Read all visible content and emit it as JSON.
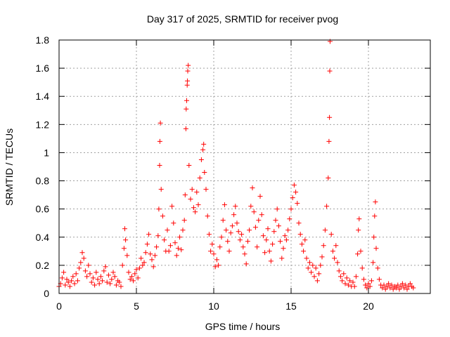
{
  "chart_data": {
    "type": "scatter",
    "title": "Day 317 of 2025, SRMTID for receiver pvog",
    "xlabel": "GPS time / hours",
    "ylabel": "SRMTID / TECUs",
    "xlim": [
      0,
      24
    ],
    "ylim": [
      0,
      1.8
    ],
    "xticks": [
      0,
      5,
      10,
      15,
      20
    ],
    "xtick_labels": [
      "0",
      "5",
      "10",
      "15",
      "20"
    ],
    "yticks": [
      0,
      0.2,
      0.4,
      0.6,
      0.8,
      1,
      1.2,
      1.4,
      1.6,
      1.8
    ],
    "ytick_labels": [
      "0",
      "0.2",
      "0.4",
      "0.6",
      "0.8",
      "1",
      "1.2",
      "1.4",
      "1.6",
      "1.8"
    ],
    "grid": true,
    "marker": "plus",
    "color": "#ff0000",
    "series": [
      {
        "name": "SRMTID",
        "points": [
          [
            0.0,
            0.05
          ],
          [
            0.1,
            0.07
          ],
          [
            0.2,
            0.11
          ],
          [
            0.3,
            0.15
          ],
          [
            0.4,
            0.06
          ],
          [
            0.5,
            0.1
          ],
          [
            0.6,
            0.08
          ],
          [
            0.7,
            0.05
          ],
          [
            0.8,
            0.09
          ],
          [
            0.9,
            0.12
          ],
          [
            1.0,
            0.07
          ],
          [
            1.1,
            0.14
          ],
          [
            1.2,
            0.09
          ],
          [
            1.3,
            0.18
          ],
          [
            1.4,
            0.22
          ],
          [
            1.5,
            0.29
          ],
          [
            1.6,
            0.25
          ],
          [
            1.7,
            0.16
          ],
          [
            1.8,
            0.12
          ],
          [
            1.9,
            0.2
          ],
          [
            2.0,
            0.14
          ],
          [
            2.1,
            0.08
          ],
          [
            2.2,
            0.11
          ],
          [
            2.3,
            0.06
          ],
          [
            2.4,
            0.15
          ],
          [
            2.5,
            0.1
          ],
          [
            2.6,
            0.07
          ],
          [
            2.7,
            0.12
          ],
          [
            2.8,
            0.09
          ],
          [
            2.9,
            0.16
          ],
          [
            3.0,
            0.19
          ],
          [
            3.1,
            0.08
          ],
          [
            3.2,
            0.13
          ],
          [
            3.3,
            0.07
          ],
          [
            3.4,
            0.1
          ],
          [
            3.5,
            0.15
          ],
          [
            3.6,
            0.12
          ],
          [
            3.7,
            0.06
          ],
          [
            3.8,
            0.09
          ],
          [
            3.9,
            0.08
          ],
          [
            4.0,
            0.05
          ],
          [
            4.1,
            0.2
          ],
          [
            4.2,
            0.32
          ],
          [
            4.25,
            0.46
          ],
          [
            4.3,
            0.38
          ],
          [
            4.4,
            0.27
          ],
          [
            4.5,
            0.15
          ],
          [
            4.6,
            0.1
          ],
          [
            4.7,
            0.12
          ],
          [
            4.8,
            0.09
          ],
          [
            4.9,
            0.14
          ],
          [
            5.0,
            0.17
          ],
          [
            5.1,
            0.11
          ],
          [
            5.2,
            0.18
          ],
          [
            5.3,
            0.25
          ],
          [
            5.4,
            0.2
          ],
          [
            5.5,
            0.22
          ],
          [
            5.6,
            0.29
          ],
          [
            5.7,
            0.35
          ],
          [
            5.8,
            0.42
          ],
          [
            5.9,
            0.28
          ],
          [
            6.0,
            0.24
          ],
          [
            6.1,
            0.19
          ],
          [
            6.2,
            0.27
          ],
          [
            6.3,
            0.33
          ],
          [
            6.4,
            0.41
          ],
          [
            6.45,
            0.6
          ],
          [
            6.5,
            0.91
          ],
          [
            6.52,
            1.08
          ],
          [
            6.55,
            1.21
          ],
          [
            6.6,
            0.74
          ],
          [
            6.7,
            0.55
          ],
          [
            6.8,
            0.38
          ],
          [
            6.9,
            0.3
          ],
          [
            7.0,
            0.45
          ],
          [
            7.1,
            0.3
          ],
          [
            7.2,
            0.34
          ],
          [
            7.3,
            0.62
          ],
          [
            7.4,
            0.5
          ],
          [
            7.5,
            0.36
          ],
          [
            7.6,
            0.27
          ],
          [
            7.7,
            0.32
          ],
          [
            7.8,
            0.4
          ],
          [
            7.9,
            0.31
          ],
          [
            8.0,
            0.45
          ],
          [
            8.1,
            0.52
          ],
          [
            8.15,
            0.7
          ],
          [
            8.2,
            1.17
          ],
          [
            8.22,
            1.31
          ],
          [
            8.25,
            1.37
          ],
          [
            8.28,
            1.48
          ],
          [
            8.3,
            1.51
          ],
          [
            8.32,
            1.58
          ],
          [
            8.35,
            1.62
          ],
          [
            8.4,
            0.91
          ],
          [
            8.5,
            0.67
          ],
          [
            8.6,
            0.74
          ],
          [
            8.7,
            0.61
          ],
          [
            8.8,
            0.58
          ],
          [
            8.9,
            0.72
          ],
          [
            9.0,
            0.63
          ],
          [
            9.1,
            0.82
          ],
          [
            9.2,
            0.95
          ],
          [
            9.3,
            1.02
          ],
          [
            9.35,
            1.06
          ],
          [
            9.4,
            0.86
          ],
          [
            9.5,
            0.74
          ],
          [
            9.6,
            0.55
          ],
          [
            9.7,
            0.42
          ],
          [
            9.8,
            0.3
          ],
          [
            9.9,
            0.35
          ],
          [
            10.0,
            0.28
          ],
          [
            10.1,
            0.19
          ],
          [
            10.2,
            0.24
          ],
          [
            10.3,
            0.2
          ],
          [
            10.4,
            0.33
          ],
          [
            10.5,
            0.4
          ],
          [
            10.6,
            0.52
          ],
          [
            10.7,
            0.63
          ],
          [
            10.8,
            0.45
          ],
          [
            10.9,
            0.37
          ],
          [
            11.0,
            0.3
          ],
          [
            11.1,
            0.43
          ],
          [
            11.2,
            0.48
          ],
          [
            11.3,
            0.56
          ],
          [
            11.4,
            0.62
          ],
          [
            11.5,
            0.5
          ],
          [
            11.6,
            0.44
          ],
          [
            11.7,
            0.38
          ],
          [
            11.8,
            0.42
          ],
          [
            11.9,
            0.33
          ],
          [
            12.0,
            0.28
          ],
          [
            12.1,
            0.21
          ],
          [
            12.2,
            0.37
          ],
          [
            12.3,
            0.45
          ],
          [
            12.4,
            0.62
          ],
          [
            12.5,
            0.75
          ],
          [
            12.6,
            0.58
          ],
          [
            12.7,
            0.47
          ],
          [
            12.8,
            0.33
          ],
          [
            12.9,
            0.52
          ],
          [
            13.0,
            0.69
          ],
          [
            13.1,
            0.56
          ],
          [
            13.2,
            0.41
          ],
          [
            13.3,
            0.29
          ],
          [
            13.4,
            0.38
          ],
          [
            13.5,
            0.46
          ],
          [
            13.6,
            0.3
          ],
          [
            13.7,
            0.23
          ],
          [
            13.8,
            0.35
          ],
          [
            13.9,
            0.44
          ],
          [
            14.0,
            0.52
          ],
          [
            14.1,
            0.6
          ],
          [
            14.2,
            0.48
          ],
          [
            14.3,
            0.37
          ],
          [
            14.4,
            0.25
          ],
          [
            14.5,
            0.32
          ],
          [
            14.6,
            0.41
          ],
          [
            14.7,
            0.38
          ],
          [
            14.8,
            0.45
          ],
          [
            14.9,
            0.53
          ],
          [
            15.0,
            0.6
          ],
          [
            15.1,
            0.68
          ],
          [
            15.2,
            0.77
          ],
          [
            15.3,
            0.72
          ],
          [
            15.4,
            0.64
          ],
          [
            15.5,
            0.5
          ],
          [
            15.6,
            0.42
          ],
          [
            15.7,
            0.35
          ],
          [
            15.8,
            0.3
          ],
          [
            15.9,
            0.38
          ],
          [
            16.0,
            0.25
          ],
          [
            16.1,
            0.18
          ],
          [
            16.2,
            0.22
          ],
          [
            16.3,
            0.15
          ],
          [
            16.4,
            0.2
          ],
          [
            16.5,
            0.12
          ],
          [
            16.6,
            0.18
          ],
          [
            16.7,
            0.09
          ],
          [
            16.8,
            0.14
          ],
          [
            16.9,
            0.2
          ],
          [
            17.0,
            0.26
          ],
          [
            17.1,
            0.34
          ],
          [
            17.2,
            0.45
          ],
          [
            17.3,
            0.62
          ],
          [
            17.4,
            0.82
          ],
          [
            17.45,
            1.08
          ],
          [
            17.48,
            1.25
          ],
          [
            17.5,
            1.58
          ],
          [
            17.52,
            1.79
          ],
          [
            17.6,
            0.42
          ],
          [
            17.7,
            0.3
          ],
          [
            17.8,
            0.25
          ],
          [
            17.9,
            0.34
          ],
          [
            18.0,
            0.22
          ],
          [
            18.1,
            0.16
          ],
          [
            18.2,
            0.12
          ],
          [
            18.3,
            0.09
          ],
          [
            18.4,
            0.14
          ],
          [
            18.5,
            0.07
          ],
          [
            18.6,
            0.11
          ],
          [
            18.7,
            0.06
          ],
          [
            18.8,
            0.09
          ],
          [
            18.9,
            0.05
          ],
          [
            19.0,
            0.08
          ],
          [
            19.1,
            0.05
          ],
          [
            19.2,
            0.12
          ],
          [
            19.3,
            0.28
          ],
          [
            19.35,
            0.45
          ],
          [
            19.4,
            0.53
          ],
          [
            19.5,
            0.3
          ],
          [
            19.6,
            0.18
          ],
          [
            19.7,
            0.1
          ],
          [
            19.8,
            0.06
          ],
          [
            19.9,
            0.04
          ],
          [
            20.0,
            0.07
          ],
          [
            20.1,
            0.05
          ],
          [
            20.2,
            0.09
          ],
          [
            20.3,
            0.22
          ],
          [
            20.35,
            0.4
          ],
          [
            20.4,
            0.55
          ],
          [
            20.45,
            0.65
          ],
          [
            20.5,
            0.32
          ],
          [
            20.6,
            0.18
          ],
          [
            20.7,
            0.1
          ],
          [
            20.8,
            0.06
          ],
          [
            20.9,
            0.04
          ],
          [
            21.0,
            0.06
          ],
          [
            21.1,
            0.03
          ],
          [
            21.2,
            0.05
          ],
          [
            21.3,
            0.07
          ],
          [
            21.4,
            0.04
          ],
          [
            21.5,
            0.06
          ],
          [
            21.6,
            0.03
          ],
          [
            21.7,
            0.05
          ],
          [
            21.8,
            0.04
          ],
          [
            21.9,
            0.06
          ],
          [
            22.0,
            0.03
          ],
          [
            22.1,
            0.05
          ],
          [
            22.2,
            0.07
          ],
          [
            22.3,
            0.04
          ],
          [
            22.4,
            0.06
          ],
          [
            22.5,
            0.03
          ],
          [
            22.6,
            0.05
          ],
          [
            22.7,
            0.07
          ],
          [
            22.8,
            0.05
          ],
          [
            22.9,
            0.04
          ]
        ]
      }
    ]
  }
}
